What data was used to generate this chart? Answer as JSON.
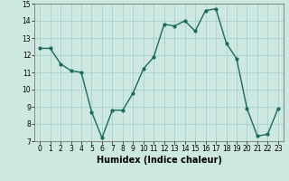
{
  "x": [
    0,
    1,
    2,
    3,
    4,
    5,
    6,
    7,
    8,
    9,
    10,
    11,
    12,
    13,
    14,
    15,
    16,
    17,
    18,
    19,
    20,
    21,
    22,
    23
  ],
  "y": [
    12.4,
    12.4,
    11.5,
    11.1,
    11.0,
    8.7,
    7.2,
    8.8,
    8.8,
    9.8,
    11.2,
    11.9,
    13.8,
    13.7,
    14.0,
    13.4,
    14.6,
    14.7,
    12.7,
    11.8,
    8.9,
    7.3,
    7.4,
    8.9
  ],
  "xlabel": "Humidex (Indice chaleur)",
  "ylim": [
    7,
    15
  ],
  "xlim_min": -0.5,
  "xlim_max": 23.5,
  "yticks": [
    7,
    8,
    9,
    10,
    11,
    12,
    13,
    14,
    15
  ],
  "xticks": [
    0,
    1,
    2,
    3,
    4,
    5,
    6,
    7,
    8,
    9,
    10,
    11,
    12,
    13,
    14,
    15,
    16,
    17,
    18,
    19,
    20,
    21,
    22,
    23
  ],
  "line_color": "#1a6b5a",
  "marker": "o",
  "marker_size": 2,
  "bg_color": "#cce8e0",
  "grid_color": "#aacfca",
  "line_width": 1.0
}
